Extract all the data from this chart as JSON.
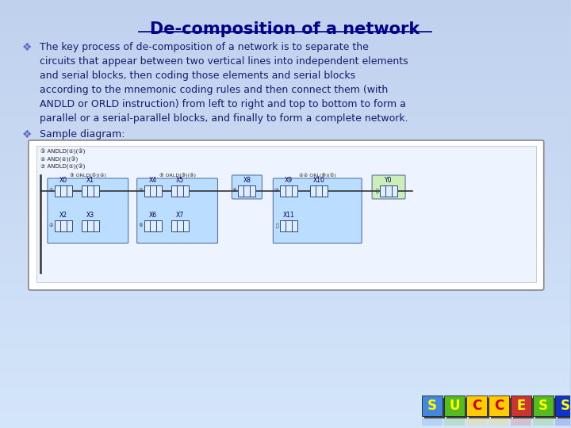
{
  "title": "De-composition of a network",
  "title_color": "#00008B",
  "bg_color": "#c5d5ee",
  "bullet_symbol": "❖",
  "bullet_color": "#6666cc",
  "bullet1_lines": [
    "The key process of de-composition of a network is to separate the",
    "circuits that appear between two vertical lines into independent elements",
    "and serial blocks, then coding those elements and serial blocks",
    "according to the mnemonic coding rules and then connect them (with",
    "ANDLD or ORLD instruction) from left to right and top to bottom to form a",
    "parallel or a serial-parallel blocks, and finally to form a complete network."
  ],
  "bullet2_text": "Sample diagram:",
  "text_color": "#1a1a6e",
  "success_letters": [
    "S",
    "U",
    "C",
    "C",
    "E",
    "S",
    "S"
  ],
  "success_bg_colors": [
    "#4488dd",
    "#55bb22",
    "#ffcc00",
    "#ffcc00",
    "#cc3333",
    "#55bb22",
    "#1133cc"
  ],
  "success_letter_colors": [
    "#ffff00",
    "#ffff00",
    "#cc0000",
    "#cc0000",
    "#ffff00",
    "#ffff00",
    "#ffff00"
  ]
}
